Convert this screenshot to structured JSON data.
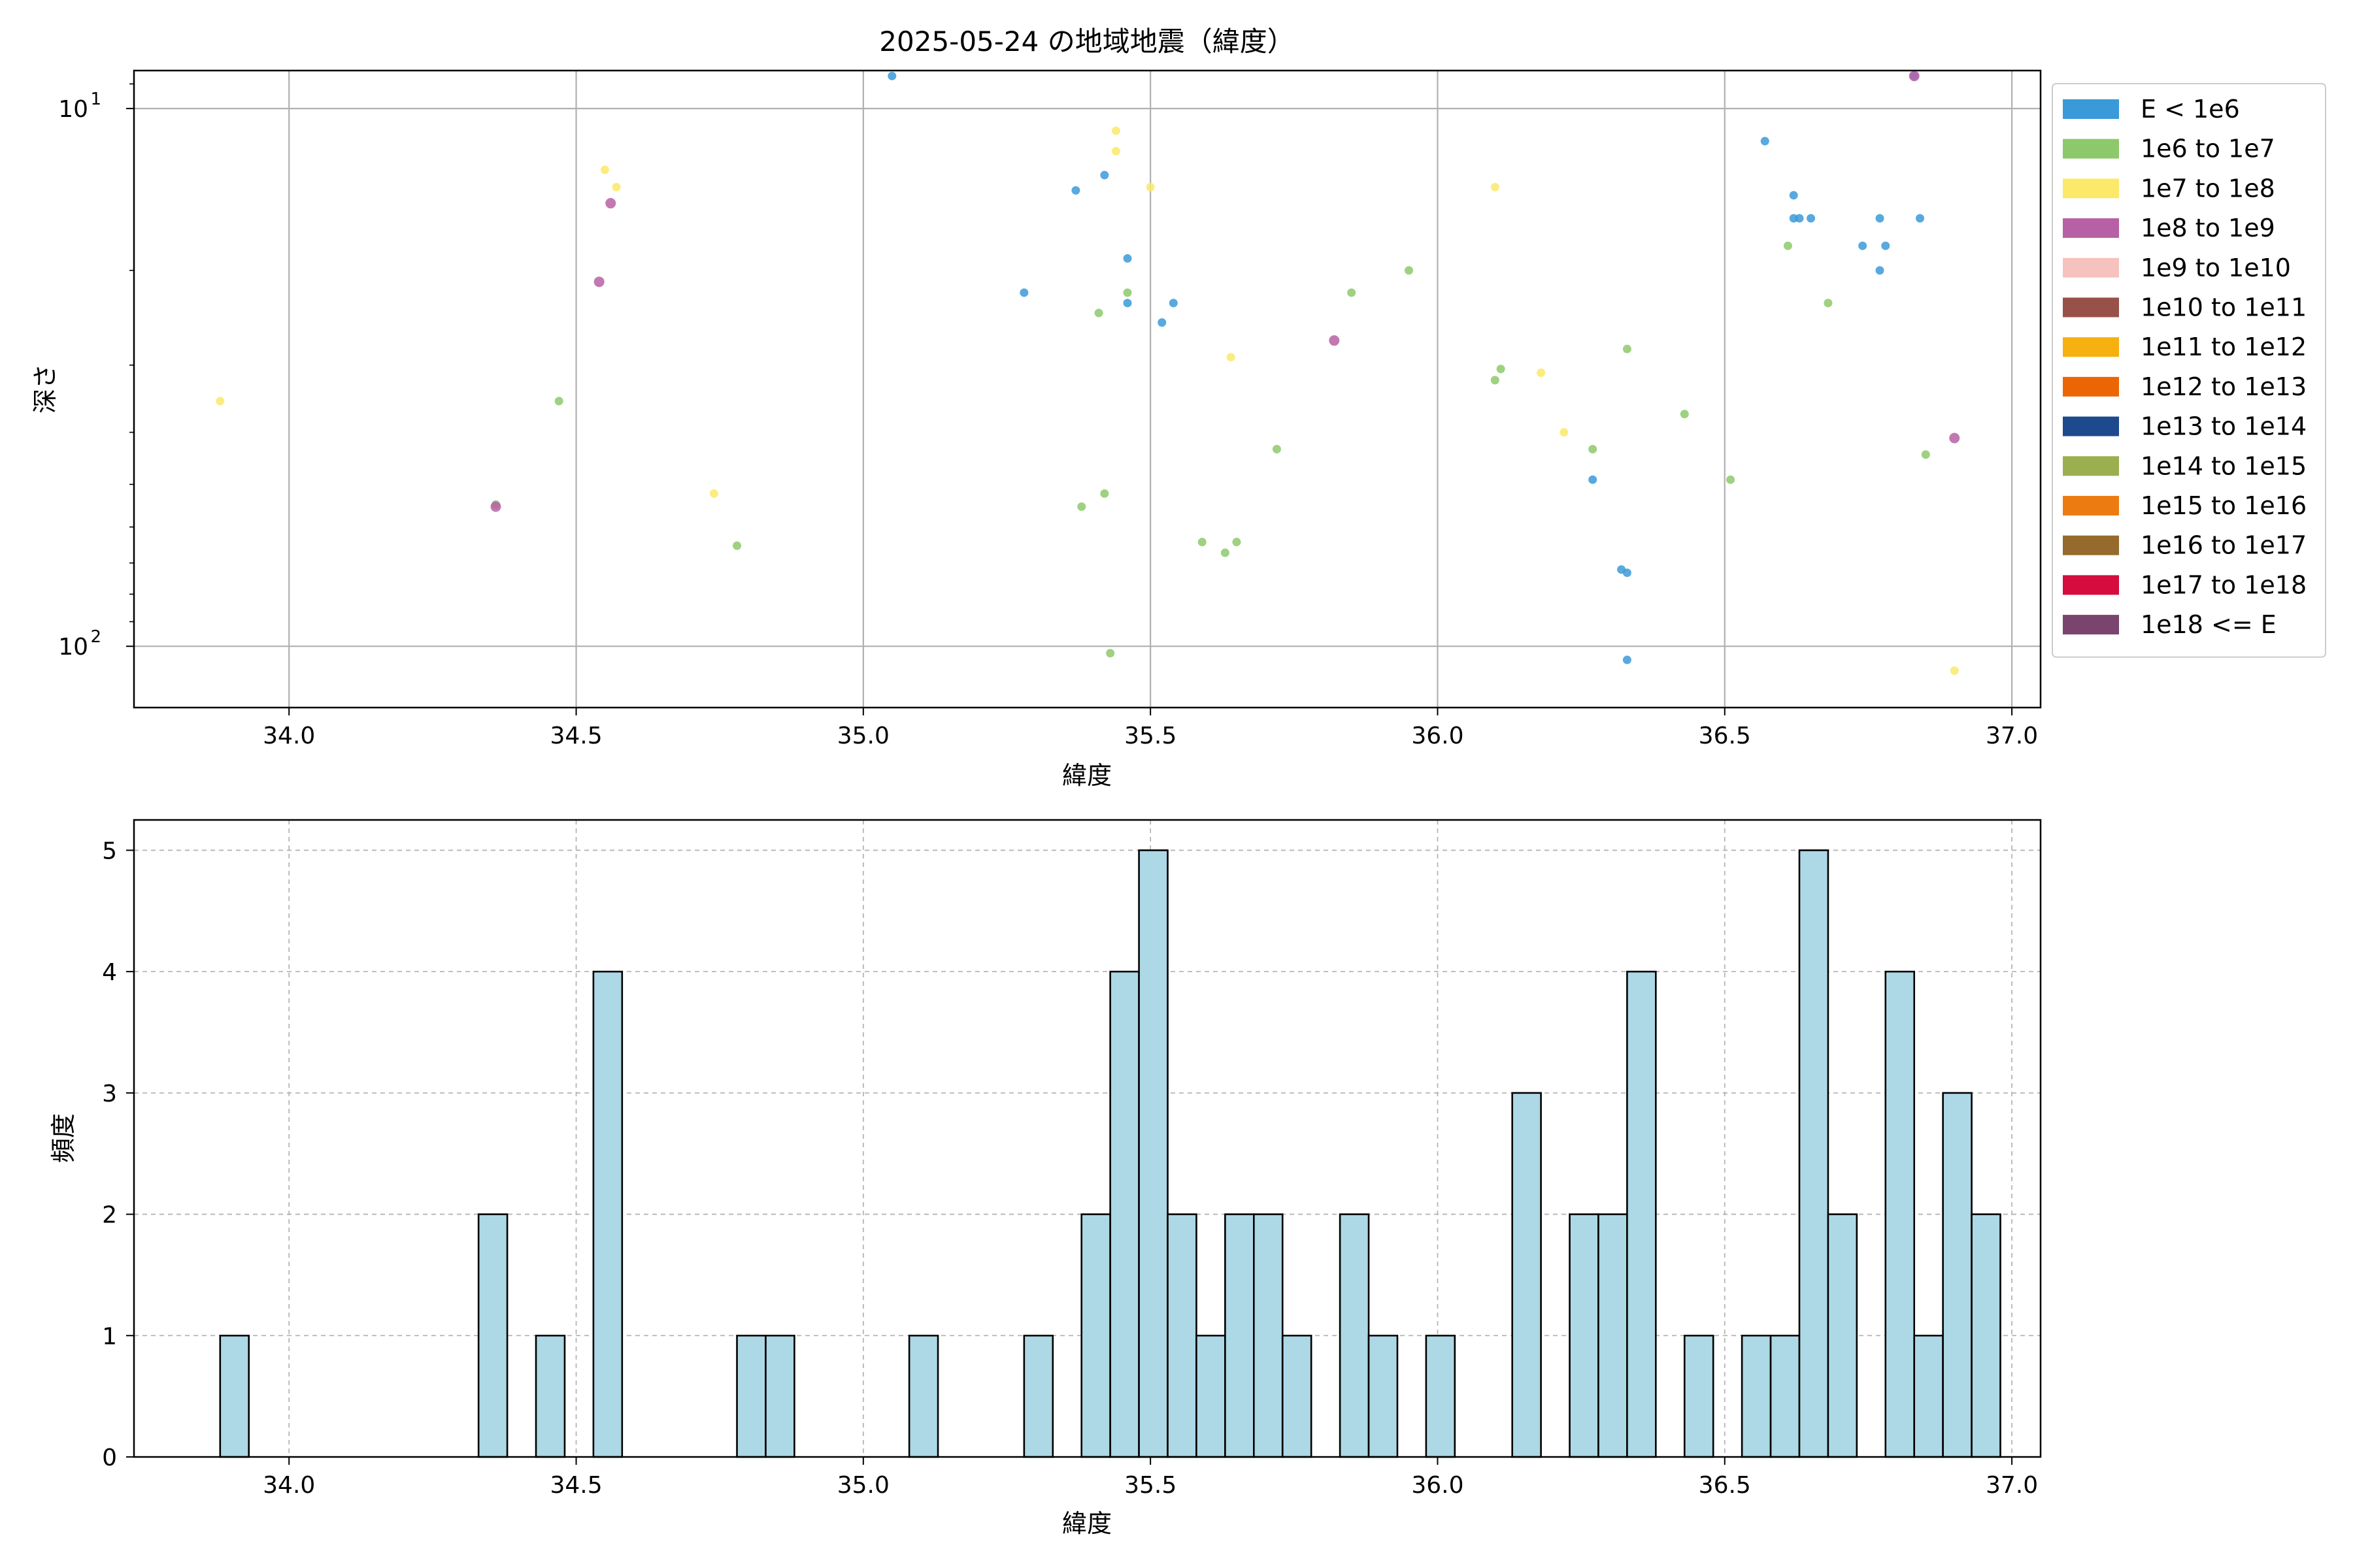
{
  "chart_data": [
    {
      "type": "scatter",
      "title": "2025-05-24 の地域地震（緯度）",
      "xlabel": "緯度",
      "ylabel": "深さ",
      "xlim": [
        33.73,
        37.05
      ],
      "ylim_inverted_log": [
        8.5,
        130
      ],
      "y_scale": "log",
      "y_inverted": true,
      "grid": true,
      "xticks": [
        "34.0",
        "34.5",
        "35.0",
        "35.5",
        "36.0",
        "36.5",
        "37.0"
      ],
      "yticks": [
        {
          "value": 10,
          "base": "10",
          "exp": "1"
        },
        {
          "value": 100,
          "base": "10",
          "exp": "2"
        }
      ],
      "legend_position": "outside-right",
      "legend": [
        {
          "label": "E < 1e6",
          "color": "#3a9ad9"
        },
        {
          "label": "1e6 to 1e7",
          "color": "#8dc96b"
        },
        {
          "label": "1e7 to 1e8",
          "color": "#fce96a"
        },
        {
          "label": "1e8 to 1e9",
          "color": "#b760a5"
        },
        {
          "label": "1e9 to 1e10",
          "color": "#f6c2be"
        },
        {
          "label": "1e10 to 1e11",
          "color": "#985149"
        },
        {
          "label": "1e11 to 1e12",
          "color": "#f6b010"
        },
        {
          "label": "1e12 to 1e13",
          "color": "#ec6505"
        },
        {
          "label": "1e13 to 1e14",
          "color": "#1d4a8d"
        },
        {
          "label": "1e14 to 1e15",
          "color": "#9caf4e"
        },
        {
          "label": "1e15 to 1e16",
          "color": "#ec7c12"
        },
        {
          "label": "1e16 to 1e17",
          "color": "#956a2c"
        },
        {
          "label": "1e17 to 1e18",
          "color": "#d60b3e"
        },
        {
          "label": "1e18 <= E",
          "color": "#7b446e"
        }
      ],
      "series": [
        {
          "name": "E < 1e6",
          "points": [
            [
              35.05,
              8.7
            ],
            [
              35.28,
              22
            ],
            [
              35.37,
              14.2
            ],
            [
              35.42,
              13.3
            ],
            [
              35.46,
              19
            ],
            [
              35.46,
              23
            ],
            [
              35.52,
              25
            ],
            [
              35.54,
              23
            ],
            [
              36.57,
              11.5
            ],
            [
              36.62,
              14.5
            ],
            [
              36.62,
              16
            ],
            [
              36.63,
              16
            ],
            [
              36.65,
              16
            ],
            [
              36.74,
              18
            ],
            [
              36.77,
              16
            ],
            [
              36.78,
              18
            ],
            [
              36.77,
              20
            ],
            [
              36.84,
              16
            ],
            [
              36.83,
              8.7
            ],
            [
              36.27,
              49
            ],
            [
              36.32,
              72
            ],
            [
              36.33,
              73
            ],
            [
              36.33,
              106
            ]
          ]
        },
        {
          "name": "1e6 to 1e7",
          "points": [
            [
              34.36,
              54.5
            ],
            [
              34.47,
              35
            ],
            [
              34.78,
              65
            ],
            [
              35.38,
              55
            ],
            [
              35.42,
              52
            ],
            [
              35.41,
              24
            ],
            [
              35.46,
              22
            ],
            [
              35.43,
              103
            ],
            [
              35.59,
              64
            ],
            [
              35.63,
              67
            ],
            [
              35.65,
              64
            ],
            [
              35.72,
              43
            ],
            [
              35.85,
              22
            ],
            [
              35.95,
              20
            ],
            [
              36.1,
              32
            ],
            [
              36.11,
              30.5
            ],
            [
              36.27,
              43
            ],
            [
              36.33,
              28
            ],
            [
              36.43,
              37
            ],
            [
              36.51,
              49
            ],
            [
              36.61,
              18
            ],
            [
              36.68,
              23
            ],
            [
              36.85,
              44
            ]
          ]
        },
        {
          "name": "1e7 to 1e8",
          "points": [
            [
              33.88,
              35
            ],
            [
              34.55,
              13
            ],
            [
              34.57,
              14
            ],
            [
              34.74,
              52
            ],
            [
              35.44,
              11
            ],
            [
              35.44,
              12
            ],
            [
              35.5,
              14
            ],
            [
              35.64,
              29
            ],
            [
              36.1,
              14
            ],
            [
              36.18,
              31
            ],
            [
              36.22,
              40
            ],
            [
              36.9,
              111
            ]
          ]
        },
        {
          "name": "1e8 to 1e9",
          "points": [
            [
              34.36,
              55
            ],
            [
              34.54,
              21
            ],
            [
              34.56,
              15
            ],
            [
              35.82,
              27
            ],
            [
              36.9,
              41
            ],
            [
              36.83,
              8.7
            ]
          ]
        }
      ]
    },
    {
      "type": "bar",
      "xlabel": "緯度",
      "ylabel": "頻度",
      "xlim": [
        33.73,
        37.05
      ],
      "ylim": [
        0,
        5.25
      ],
      "grid": true,
      "xticks": [
        "34.0",
        "34.5",
        "35.0",
        "35.5",
        "36.0",
        "36.5",
        "37.0"
      ],
      "yticks": [
        "0",
        "1",
        "2",
        "3",
        "4",
        "5"
      ],
      "bin_start": 33.88,
      "bin_width": 0.05,
      "values": [
        1,
        0,
        0,
        0,
        0,
        0,
        0,
        0,
        0,
        2,
        0,
        1,
        0,
        4,
        0,
        0,
        0,
        0,
        1,
        1,
        0,
        0,
        0,
        0,
        1,
        0,
        0,
        0,
        1,
        0,
        2,
        4,
        5,
        2,
        1,
        2,
        2,
        1,
        0,
        2,
        1,
        0,
        1,
        0,
        0,
        3,
        0,
        2,
        2,
        4,
        0,
        1,
        0,
        1,
        1,
        5,
        2,
        0,
        4,
        1,
        3,
        2
      ]
    }
  ]
}
